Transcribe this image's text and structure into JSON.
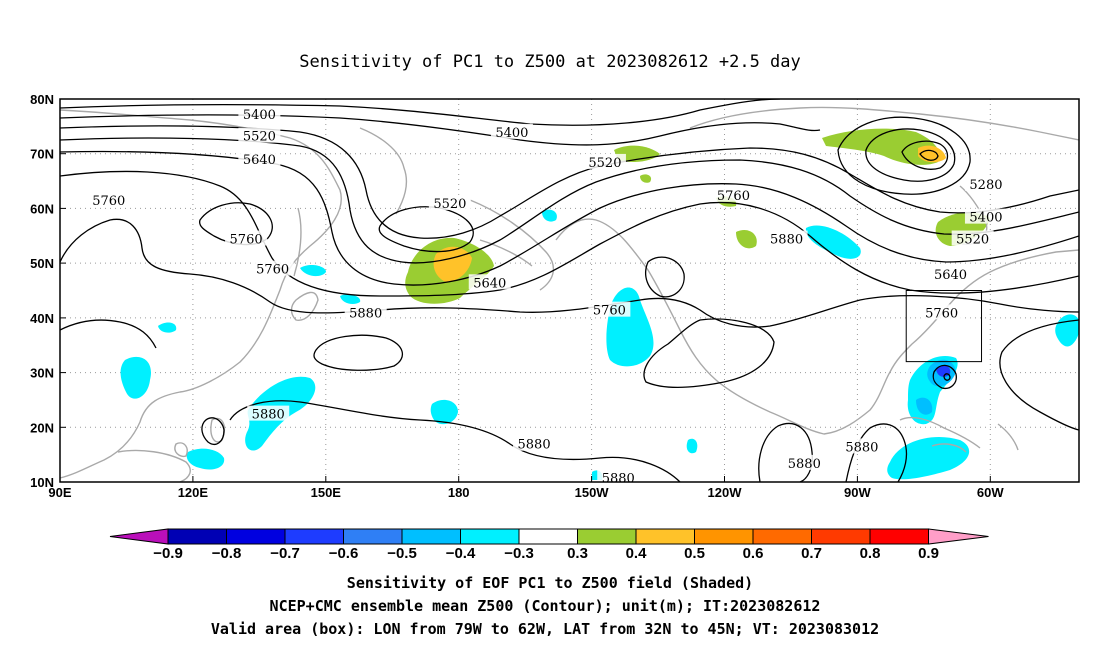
{
  "title": "Sensitivity of PC1 to Z500 at 2023082612 +2.5 day",
  "map": {
    "lon_ticks": [
      "90E",
      "120E",
      "150E",
      "180",
      "150W",
      "120W",
      "90W",
      "60W"
    ],
    "lat_ticks": [
      "80N",
      "70N",
      "60N",
      "50N",
      "40N",
      "30N",
      "20N",
      "10N"
    ],
    "lon_range": [
      90,
      320
    ],
    "lat_range": [
      10,
      80
    ]
  },
  "contour_labels": [
    {
      "text": "5400",
      "lon": 135,
      "lat": 77.3
    },
    {
      "text": "5520",
      "lon": 135,
      "lat": 73.3
    },
    {
      "text": "5640",
      "lon": 135,
      "lat": 69.0
    },
    {
      "text": "5400",
      "lon": 192,
      "lat": 74.0
    },
    {
      "text": "5520",
      "lon": 178,
      "lat": 61.0
    },
    {
      "text": "5520",
      "lon": 213,
      "lat": 68.5
    },
    {
      "text": "5760",
      "lon": 101,
      "lat": 61.5
    },
    {
      "text": "5760",
      "lon": 132,
      "lat": 54.5
    },
    {
      "text": "5760",
      "lon": 138,
      "lat": 49.0
    },
    {
      "text": "5640",
      "lon": 187,
      "lat": 46.5
    },
    {
      "text": "5760",
      "lon": 242,
      "lat": 62.5
    },
    {
      "text": "5880",
      "lon": 254,
      "lat": 54.5
    },
    {
      "text": "5760",
      "lon": 214,
      "lat": 41.5
    },
    {
      "text": "5880",
      "lon": 159,
      "lat": 41.0
    },
    {
      "text": "5880",
      "lon": 137,
      "lat": 22.5
    },
    {
      "text": "5880",
      "lon": 197,
      "lat": 17.0
    },
    {
      "text": "5880",
      "lon": 216,
      "lat": 10.8
    },
    {
      "text": "5880",
      "lon": 258,
      "lat": 13.5
    },
    {
      "text": "5880",
      "lon": 271,
      "lat": 16.5
    },
    {
      "text": "5280",
      "lon": 299,
      "lat": 64.5
    },
    {
      "text": "5400",
      "lon": 299,
      "lat": 58.5
    },
    {
      "text": "5520",
      "lon": 296,
      "lat": 54.5
    },
    {
      "text": "5640",
      "lon": 291,
      "lat": 48.0
    },
    {
      "text": "5760",
      "lon": 289,
      "lat": 41.0
    }
  ],
  "valid_box": {
    "lon_min": 281,
    "lon_max": 298,
    "lat_min": 32,
    "lat_max": 45
  },
  "colorbar": {
    "labels": [
      "−0.9",
      "−0.8",
      "−0.7",
      "−0.6",
      "−0.5",
      "−0.4",
      "−0.3",
      "0.3",
      "0.4",
      "0.5",
      "0.6",
      "0.7",
      "0.8",
      "0.9"
    ],
    "colors": [
      "#ba0fba",
      "#0000b4",
      "#0000e0",
      "#1e3cff",
      "#2f7ff5",
      "#00bfff",
      "#00f0ff",
      "#ffffff",
      "#9acd32",
      "#ffc229",
      "#ff9400",
      "#ff6a00",
      "#ff3a00",
      "#ff0000",
      "#ff9ec8"
    ]
  },
  "captions": [
    "Sensitivity of EOF PC1 to Z500 field (Shaded)",
    "NCEP+CMC ensemble mean Z500 (Contour); unit(m); IT:2023082612",
    "Valid area (box): LON from 79W to 62W, LAT from 32N to 45N; VT: 2023083012"
  ],
  "colors": {
    "coastline": "#a9a9a9",
    "contour": "#000000",
    "positive_weak": "#9acd32",
    "positive_mid": "#ffc229",
    "negative_weak": "#00f0ff",
    "negative_mid": "#00bfff",
    "negative_strong": "#1e3cff"
  }
}
